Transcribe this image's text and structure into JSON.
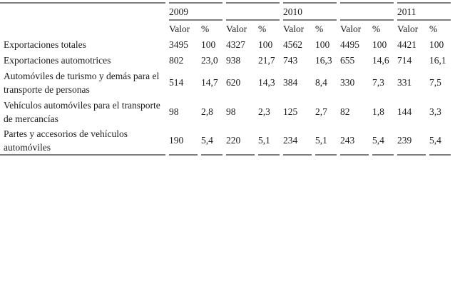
{
  "table": {
    "border_color": "#7e7e7e",
    "text_color": "#1c1c1c",
    "year_groups": [
      {
        "label": "2009"
      },
      {
        "label": ""
      },
      {
        "label": "2010"
      },
      {
        "label": ""
      },
      {
        "label": "2011"
      }
    ],
    "subheaders": {
      "valor": "Valor",
      "pct": "%"
    },
    "rows": [
      {
        "label": "Exportaciones totales",
        "values": [
          "3495",
          "100",
          "4327",
          "100",
          "4562",
          "100",
          "4495",
          "100",
          "4421",
          "100"
        ]
      },
      {
        "label": "Exportaciones automotrices",
        "values": [
          "802",
          "23,0",
          "938",
          "21,7",
          "743",
          "16,3",
          "655",
          "14,6",
          "714",
          "16,1"
        ]
      },
      {
        "label": "Automóviles de turismo y demás para el transporte de personas",
        "values": [
          "514",
          "14,7",
          "620",
          "14,3",
          "384",
          "8,4",
          "330",
          "7,3",
          "331",
          "7,5"
        ]
      },
      {
        "label": "Vehículos automóviles para el transporte de mercancías",
        "values": [
          "98",
          "2,8",
          "98",
          "2,3",
          "125",
          "2,7",
          "82",
          "1,8",
          "144",
          "3,3"
        ]
      },
      {
        "label": "Partes y accesorios de vehículos automóviles",
        "values": [
          "190",
          "5,4",
          "220",
          "5,1",
          "234",
          "5,1",
          "243",
          "5,4",
          "239",
          "5,4"
        ]
      }
    ]
  }
}
